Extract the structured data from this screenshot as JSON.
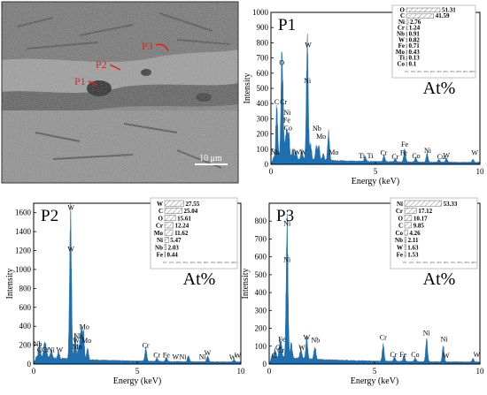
{
  "sem_image": {
    "scale_bar_label": "10 μm",
    "point_labels": [
      "P1",
      "P2",
      "P3"
    ],
    "marker_color": "#e8201a"
  },
  "colors": {
    "spectrum": "#1f6fb0",
    "legend_bar_stroke": "#666666"
  },
  "chart_data": [
    {
      "type": "line",
      "title": "P1",
      "xlabel": "Energy (keV)",
      "ylabel": "Intensity",
      "xlim": [
        0,
        10
      ],
      "ylim": [
        0,
        1000
      ],
      "x_ticks": [
        0,
        5,
        10
      ],
      "y_ticks": [
        0,
        100,
        200,
        300,
        400,
        500,
        600,
        700,
        800,
        900,
        1000
      ],
      "unit_label": "At%",
      "composition": {
        "elements": [
          "O",
          "C",
          "Ni",
          "Cr",
          "Nb",
          "W",
          "Fe",
          "Mo",
          "Ti",
          "Co"
        ],
        "values": [
          "51.31",
          "41.59",
          "2.76",
          "1.24",
          "0.91",
          "0.82",
          "0.71",
          "0.43",
          "0.13",
          "0.1"
        ],
        "axis_ticks": [
          "0%",
          "10%",
          "20%",
          "30%",
          "40%",
          "50%",
          "60%",
          "70%",
          "80%",
          "90%",
          "100%"
        ]
      },
      "spectrum_peaks": [
        {
          "x": 0.28,
          "y": 330
        },
        {
          "x": 0.52,
          "y": 600
        },
        {
          "x": 0.57,
          "y": 200
        },
        {
          "x": 0.7,
          "y": 90
        },
        {
          "x": 0.76,
          "y": 110
        },
        {
          "x": 0.85,
          "y": 160
        },
        {
          "x": 1.05,
          "y": 65
        },
        {
          "x": 1.2,
          "y": 50
        },
        {
          "x": 1.48,
          "y": 60
        },
        {
          "x": 1.74,
          "y": 750
        },
        {
          "x": 1.9,
          "y": 95
        },
        {
          "x": 2.17,
          "y": 85
        },
        {
          "x": 2.29,
          "y": 95
        },
        {
          "x": 2.5,
          "y": 40
        },
        {
          "x": 2.76,
          "y": 175
        },
        {
          "x": 4.51,
          "y": 30
        },
        {
          "x": 5.41,
          "y": 45
        },
        {
          "x": 5.95,
          "y": 18
        },
        {
          "x": 6.4,
          "y": 85
        },
        {
          "x": 6.93,
          "y": 28
        },
        {
          "x": 7.47,
          "y": 55
        },
        {
          "x": 8.04,
          "y": 18
        },
        {
          "x": 8.4,
          "y": 28
        },
        {
          "x": 9.67,
          "y": 20
        }
      ],
      "peak_labels": [
        {
          "text": "C",
          "x": 0.28,
          "y": 395
        },
        {
          "text": "O",
          "x": 0.52,
          "y": 655
        },
        {
          "text": "Cr",
          "x": 0.6,
          "y": 395
        },
        {
          "text": "Ni",
          "x": 0.78,
          "y": 325
        },
        {
          "text": "Fe",
          "x": 0.76,
          "y": 275
        },
        {
          "text": "Co",
          "x": 0.82,
          "y": 225
        },
        {
          "text": "W",
          "x": 1.78,
          "y": 770
        },
        {
          "text": "Ni",
          "x": 1.74,
          "y": 535
        },
        {
          "text": "Nb",
          "x": 2.2,
          "y": 220
        },
        {
          "text": "Mo",
          "x": 2.4,
          "y": 170
        },
        {
          "text": "Mo",
          "x": 3.0,
          "y": 65
        },
        {
          "text": "Nb",
          "x": 0.2,
          "y": 65
        },
        {
          "text": "W",
          "x": 1.25,
          "y": 65
        },
        {
          "text": "W",
          "x": 1.55,
          "y": 65
        },
        {
          "text": "Ti",
          "x": 4.35,
          "y": 40
        },
        {
          "text": "Ti",
          "x": 4.75,
          "y": 40
        },
        {
          "text": "Cr",
          "x": 5.4,
          "y": 60
        },
        {
          "text": "Cr",
          "x": 5.95,
          "y": 35
        },
        {
          "text": "Fe",
          "x": 6.35,
          "y": 60
        },
        {
          "text": "Fe",
          "x": 6.4,
          "y": 115
        },
        {
          "text": "Ni",
          "x": 7.5,
          "y": 75
        },
        {
          "text": "Co",
          "x": 6.95,
          "y": 40
        },
        {
          "text": "Cu",
          "x": 8.15,
          "y": 35
        },
        {
          "text": "W",
          "x": 8.4,
          "y": 45
        },
        {
          "text": "W",
          "x": 9.75,
          "y": 60
        }
      ]
    },
    {
      "type": "line",
      "title": "P2",
      "xlabel": "Energy (keV)",
      "ylabel": "Intensity",
      "xlim": [
        0,
        10
      ],
      "ylim": [
        0,
        1700
      ],
      "x_ticks": [
        0,
        5,
        10
      ],
      "y_ticks": [
        0,
        200,
        400,
        600,
        800,
        1000,
        1200,
        1400,
        1600
      ],
      "unit_label": "At%",
      "composition": {
        "elements": [
          "W",
          "C",
          "O",
          "Cr",
          "Mo",
          "Ni",
          "Nb",
          "Fe"
        ],
        "values": [
          "27.55",
          "25.04",
          "15.61",
          "12.24",
          "11.62",
          "5.47",
          "2.03",
          "0.44"
        ],
        "axis_ticks": [
          "0%",
          "10%",
          "20%",
          "30%",
          "40%",
          "50%",
          "60%",
          "70%",
          "80%",
          "90%",
          "100%"
        ]
      },
      "spectrum_peaks": [
        {
          "x": 0.28,
          "y": 140
        },
        {
          "x": 0.52,
          "y": 120
        },
        {
          "x": 0.6,
          "y": 95
        },
        {
          "x": 0.85,
          "y": 80
        },
        {
          "x": 1.2,
          "y": 70
        },
        {
          "x": 1.78,
          "y": 1600
        },
        {
          "x": 2.0,
          "y": 250
        },
        {
          "x": 2.17,
          "y": 140
        },
        {
          "x": 2.29,
          "y": 330
        },
        {
          "x": 2.4,
          "y": 280
        },
        {
          "x": 2.6,
          "y": 120
        },
        {
          "x": 5.41,
          "y": 140
        },
        {
          "x": 5.95,
          "y": 30
        },
        {
          "x": 6.4,
          "y": 45
        },
        {
          "x": 7.47,
          "y": 65
        },
        {
          "x": 8.4,
          "y": 60
        },
        {
          "x": 9.67,
          "y": 25
        }
      ],
      "peak_labels": [
        {
          "text": "Nb",
          "x": 0.2,
          "y": 185
        },
        {
          "text": "C",
          "x": 0.28,
          "y": 125
        },
        {
          "text": "Cr",
          "x": 0.55,
          "y": 125
        },
        {
          "text": "Ni",
          "x": 0.85,
          "y": 125
        },
        {
          "text": "W",
          "x": 1.25,
          "y": 125
        },
        {
          "text": "W",
          "x": 1.8,
          "y": 1630
        },
        {
          "text": "W",
          "x": 1.8,
          "y": 1190
        },
        {
          "text": "Mo",
          "x": 2.45,
          "y": 370
        },
        {
          "text": "Nb",
          "x": 2.15,
          "y": 270
        },
        {
          "text": "Mo",
          "x": 2.55,
          "y": 225
        },
        {
          "text": "W",
          "x": 2.05,
          "y": 225
        },
        {
          "text": "Mo",
          "x": 2.1,
          "y": 160
        },
        {
          "text": "Cr",
          "x": 5.41,
          "y": 175
        },
        {
          "text": "Cr",
          "x": 5.95,
          "y": 70
        },
        {
          "text": "Fe",
          "x": 6.4,
          "y": 70
        },
        {
          "text": "W",
          "x": 6.85,
          "y": 50
        },
        {
          "text": "Ni",
          "x": 7.2,
          "y": 50
        },
        {
          "text": "Ni",
          "x": 8.15,
          "y": 50
        },
        {
          "text": "W",
          "x": 8.4,
          "y": 95
        },
        {
          "text": "W",
          "x": 9.6,
          "y": 45
        },
        {
          "text": "W",
          "x": 9.85,
          "y": 65
        }
      ]
    },
    {
      "type": "line",
      "title": "P3",
      "xlabel": "Energy (keV)",
      "ylabel": "Intensity",
      "xlim": [
        0,
        10
      ],
      "ylim": [
        0,
        900
      ],
      "x_ticks": [
        0,
        5,
        10
      ],
      "y_ticks": [
        0,
        100,
        200,
        300,
        400,
        500,
        600,
        700,
        800
      ],
      "unit_label": "At%",
      "composition": {
        "elements": [
          "Ni",
          "Cr",
          "O",
          "C",
          "Co",
          "Nb",
          "W",
          "Fe"
        ],
        "values": [
          "53.33",
          "17.12",
          "10.17",
          "9.85",
          "4.26",
          "2.11",
          "1.63",
          "1.53"
        ],
        "axis_ticks": [
          "0%",
          "10%",
          "20%",
          "30%",
          "40%",
          "50%",
          "60%",
          "70%",
          "80%",
          "90%",
          "100%"
        ]
      },
      "spectrum_peaks": [
        {
          "x": 0.28,
          "y": 40
        },
        {
          "x": 0.52,
          "y": 70
        },
        {
          "x": 0.57,
          "y": 50
        },
        {
          "x": 0.85,
          "y": 760
        },
        {
          "x": 1.05,
          "y": 80
        },
        {
          "x": 1.5,
          "y": 60
        },
        {
          "x": 1.78,
          "y": 120
        },
        {
          "x": 2.17,
          "y": 75
        },
        {
          "x": 5.41,
          "y": 90
        },
        {
          "x": 5.95,
          "y": 25
        },
        {
          "x": 6.4,
          "y": 30
        },
        {
          "x": 6.93,
          "y": 20
        },
        {
          "x": 7.47,
          "y": 120
        },
        {
          "x": 8.26,
          "y": 85
        },
        {
          "x": 9.67,
          "y": 18
        }
      ],
      "peak_labels": [
        {
          "text": "C",
          "x": 0.22,
          "y": 35
        },
        {
          "text": "O",
          "x": 0.42,
          "y": 80
        },
        {
          "text": "Fe",
          "x": 0.6,
          "y": 125
        },
        {
          "text": "Cr",
          "x": 0.55,
          "y": 65
        },
        {
          "text": "Ni",
          "x": 0.85,
          "y": 775
        },
        {
          "text": "Ni",
          "x": 0.85,
          "y": 570
        },
        {
          "text": "W",
          "x": 1.55,
          "y": 80
        },
        {
          "text": "W",
          "x": 1.78,
          "y": 135
        },
        {
          "text": "Nb",
          "x": 2.2,
          "y": 120
        },
        {
          "text": "Cr",
          "x": 5.41,
          "y": 135
        },
        {
          "text": "Cr",
          "x": 5.9,
          "y": 40
        },
        {
          "text": "Fe",
          "x": 6.35,
          "y": 40
        },
        {
          "text": "Co",
          "x": 6.93,
          "y": 40
        },
        {
          "text": "Ni",
          "x": 7.47,
          "y": 160
        },
        {
          "text": "Ni",
          "x": 8.3,
          "y": 125
        },
        {
          "text": "W",
          "x": 8.4,
          "y": 35
        },
        {
          "text": "W",
          "x": 9.85,
          "y": 40
        }
      ]
    }
  ]
}
